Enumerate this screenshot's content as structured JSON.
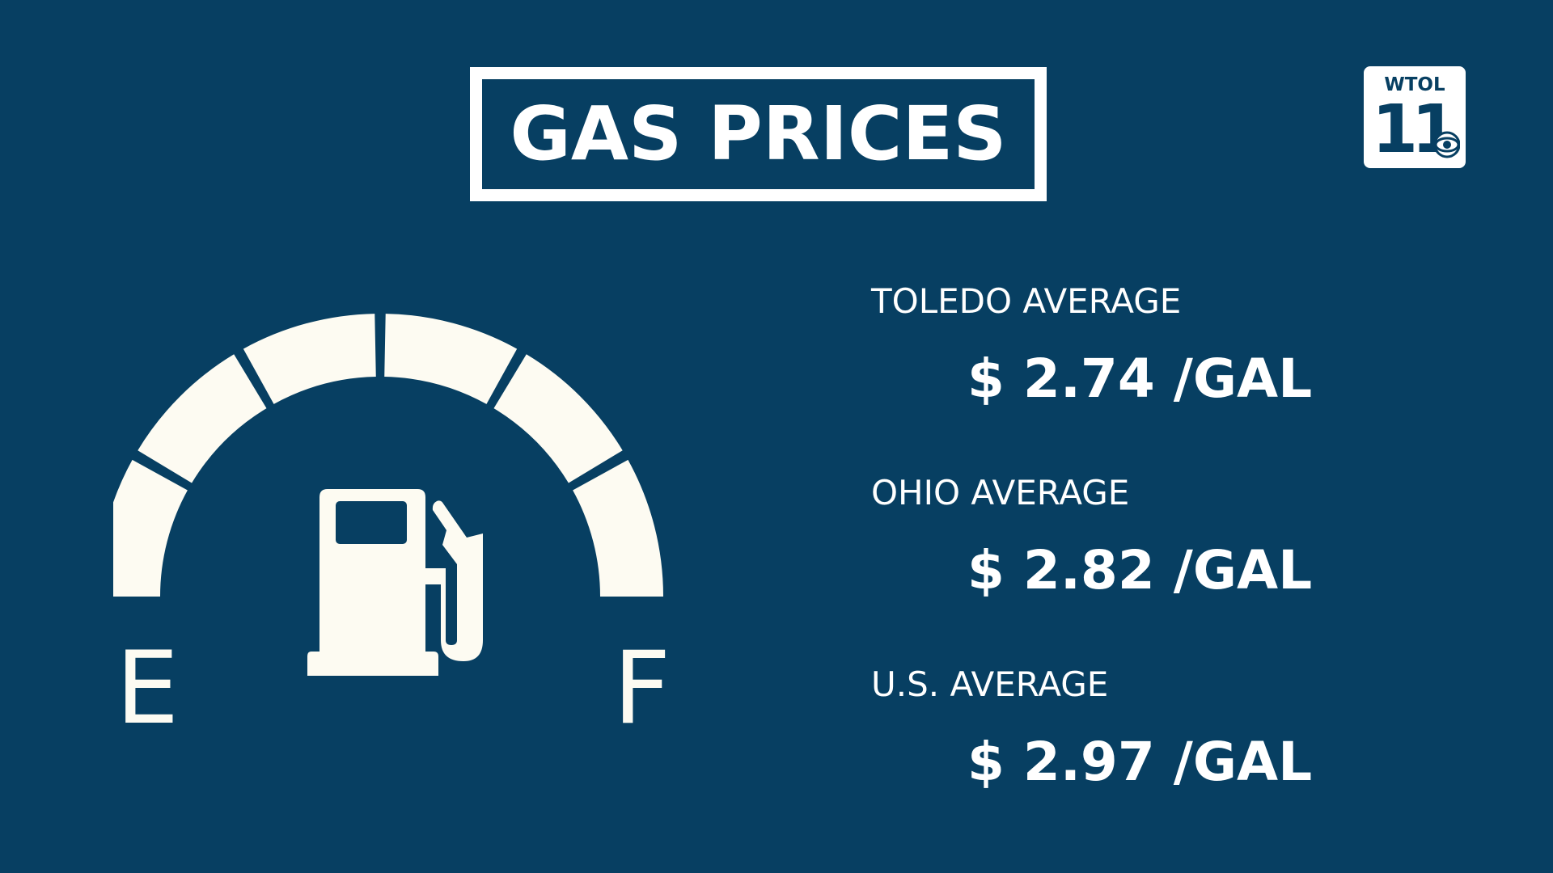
{
  "title": "GAS PRICES",
  "logo": {
    "station": "WTOL",
    "channel": "11",
    "network_icon": "cbs-eye-icon"
  },
  "gauge": {
    "empty_label": "E",
    "full_label": "F",
    "segments": 6,
    "icon": "fuel-pump-icon"
  },
  "prices": [
    {
      "label": "TOLEDO AVERAGE",
      "value": "$ 2.74 /GAL"
    },
    {
      "label": "OHIO AVERAGE",
      "value": "$ 2.82 /GAL"
    },
    {
      "label": "U.S. AVERAGE",
      "value": "$ 2.97 /GAL"
    }
  ],
  "colors": {
    "background": "#073f62",
    "foreground": "#ffffff",
    "gauge": "#fdfbf2"
  }
}
